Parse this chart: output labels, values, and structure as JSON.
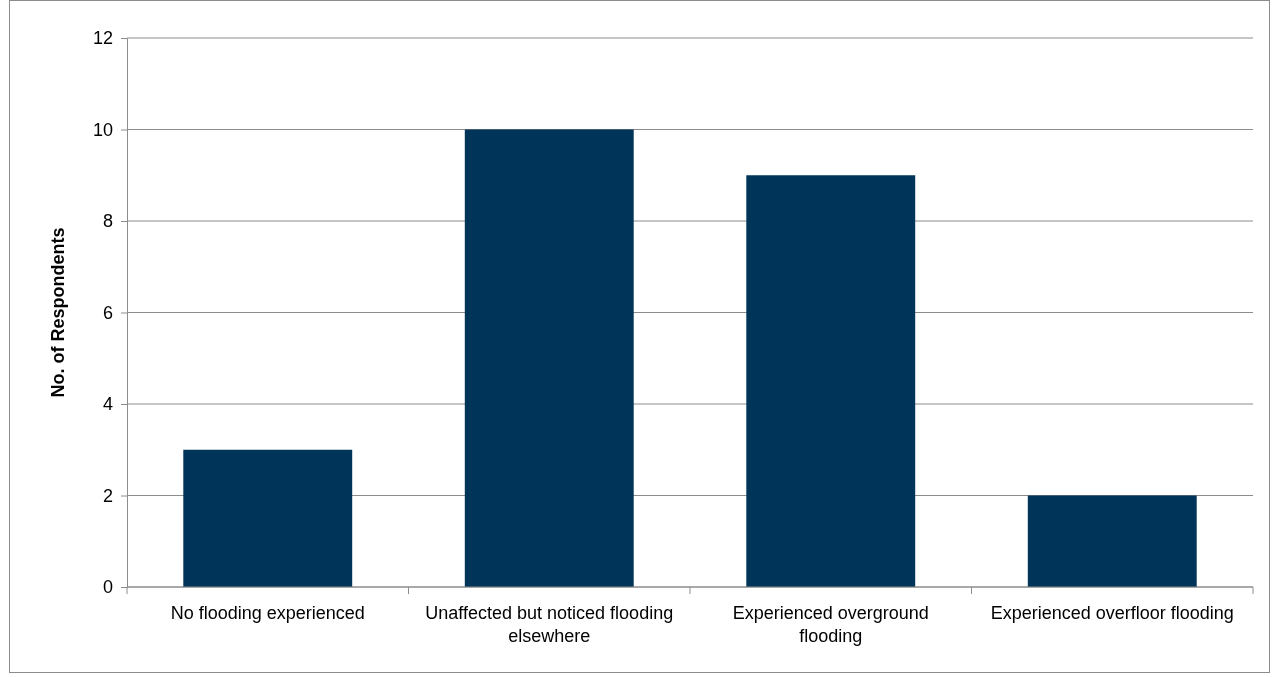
{
  "chart_data": {
    "type": "bar",
    "ylabel": "No. of Respondents",
    "categories": [
      "No flooding experienced",
      "Unaffected but noticed flooding elsewhere",
      "Experienced overground flooding",
      "Experienced overfloor flooding"
    ],
    "values": [
      3,
      10,
      9,
      2
    ],
    "color": "#003459",
    "ylim": [
      0,
      12
    ],
    "yticks": [
      0,
      2,
      4,
      6,
      8,
      10,
      12
    ],
    "grid": "y"
  }
}
